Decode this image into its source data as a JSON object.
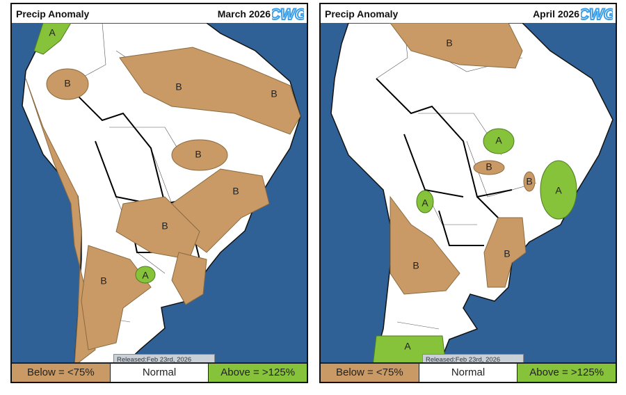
{
  "panels": [
    {
      "title": "Precip Anomaly",
      "month": "March 2026",
      "released": "Released:Feb 23rd, 2026"
    },
    {
      "title": "Precip Anomaly",
      "month": "April 2026",
      "released": "Released:Feb 23rd, 2026"
    }
  ],
  "logo": "CWG",
  "legend": {
    "below": "Below = <75%",
    "normal": "Normal",
    "above": "Above = >125%"
  },
  "anomaly_labels": {
    "below": "B",
    "above": "A"
  },
  "colors": {
    "ocean": "#2f6197",
    "below": "#c99a65",
    "normal": "#ffffff",
    "above": "#86c23a",
    "logo": "#3a9ee8"
  }
}
